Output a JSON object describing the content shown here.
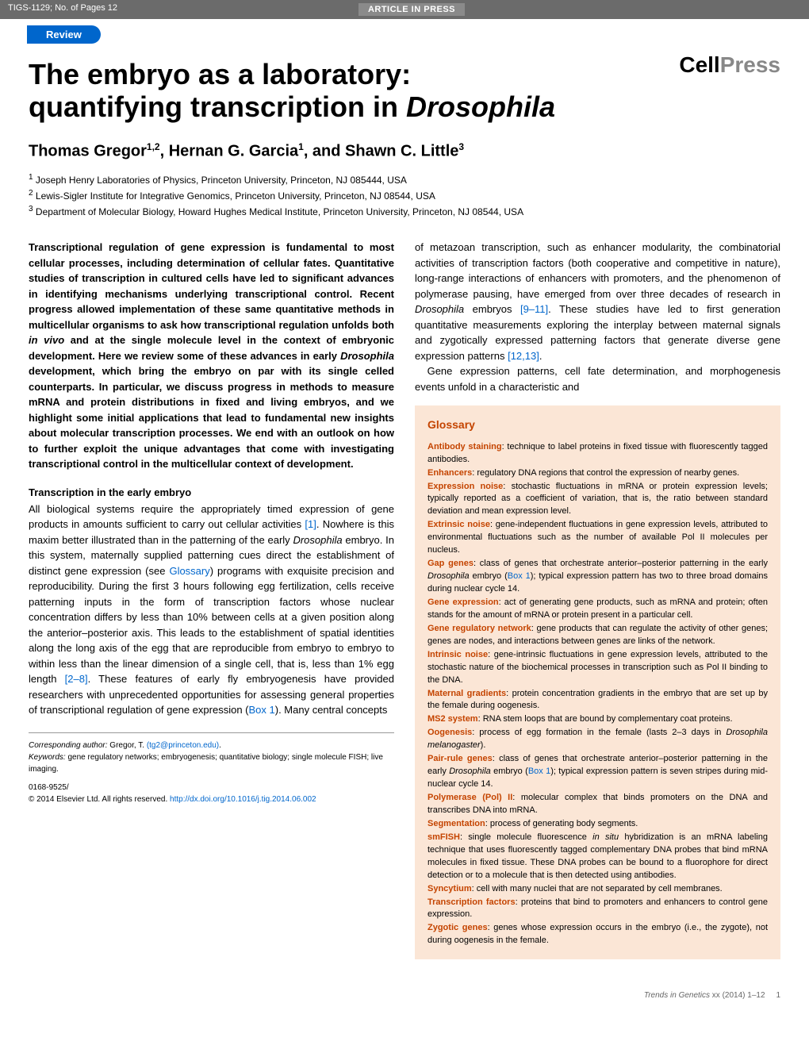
{
  "header": {
    "running_head": "TIGS-1129; No. of Pages 12",
    "banner": "ARTICLE IN PRESS",
    "review_badge": "Review",
    "publisher_logo_cell": "Cell",
    "publisher_logo_press": "Press"
  },
  "article": {
    "title_line1": "The embryo as a laboratory:",
    "title_line2_pre": "quantifying transcription in ",
    "title_line2_italic": "Drosophila",
    "authors_html": "Thomas Gregor",
    "author1_sup": "1,2",
    "author_sep1": ", Hernan G. Garcia",
    "author2_sup": "1",
    "author_sep2": ", and Shawn C. Little",
    "author3_sup": "3",
    "affiliations": [
      {
        "sup": "1",
        "text": " Joseph Henry Laboratories of Physics, Princeton University, Princeton, NJ 085444, USA"
      },
      {
        "sup": "2",
        "text": " Lewis-Sigler Institute for Integrative Genomics, Princeton University, Princeton, NJ 08544, USA"
      },
      {
        "sup": "3",
        "text": " Department of Molecular Biology, Howard Hughes Medical Institute, Princeton University, Princeton, NJ 08544, USA"
      }
    ]
  },
  "abstract": {
    "p1a": "Transcriptional regulation of gene expression is fundamental to most cellular processes, including determination of cellular fates. Quantitative studies of transcription in cultured cells have led to significant advances in identifying mechanisms underlying transcriptional control. Recent progress allowed implementation of these same quantitative methods in multicellular organisms to ask how transcriptional regulation unfolds both ",
    "p1_italic1": "in vivo",
    "p1b": " and at the single molecule level in the context of embryonic development. Here we review some of these advances in early ",
    "p1_italic2": "Drosophila",
    "p1c": " development, which bring the embryo on par with its single celled counterparts. In particular, we discuss progress in methods to measure mRNA and protein distributions in fixed and living embryos, and we highlight some initial applications that lead to fundamental new insights about molecular transcription processes. We end with an outlook on how to further exploit the unique advantages that come with investigating transcriptional control in the multicellular context of development."
  },
  "section1": {
    "heading": "Transcription in the early embryo",
    "p1a": "All biological systems require the appropriately timed expression of gene products in amounts sufficient to carry out cellular activities ",
    "p1_ref1": "[1]",
    "p1b": ". Nowhere is this maxim better illustrated than in the patterning of the early ",
    "p1_italic1": "Drosophila",
    "p1c": " embryo. In this system, maternally supplied patterning cues direct the establishment of distinct gene expression (see ",
    "p1_link1": "Glossary",
    "p1d": ") programs with exquisite precision and reproducibility. During the first 3 hours following egg fertilization, cells receive patterning inputs in the form of transcription factors whose nuclear concentration differs by less than 10% between cells at a given position along the anterior–posterior axis. This leads to the establishment of spatial identities along the long axis of the egg that are reproducible from embryo to embryo to within less than the linear dimension of a single cell, that is, less than 1% egg length ",
    "p1_ref2": "[2–8]",
    "p1e": ". These features of early fly embryogenesis have provided researchers with unprecedented opportunities for assessing general properties of transcriptional regulation of gene expression (",
    "p1_link2": "Box 1",
    "p1f": "). Many central concepts"
  },
  "col2": {
    "p1a": "of metazoan transcription, such as enhancer modularity, the combinatorial activities of transcription factors (both cooperative and competitive in nature), long-range interactions of enhancers with promoters, and the phenomenon of polymerase pausing, have emerged from over three decades of research in ",
    "p1_italic1": "Drosophila",
    "p1b": " embryos ",
    "p1_ref1": "[9–11]",
    "p1c": ". These studies have led to first generation quantitative measurements exploring the interplay between maternal signals and zygotically expressed patterning factors that generate diverse gene expression patterns ",
    "p1_ref2": "[12,13]",
    "p1d": ".",
    "p2": "Gene expression patterns, cell fate determination, and morphogenesis events unfold in a characteristic and"
  },
  "glossary": {
    "heading": "Glossary",
    "items": [
      {
        "term": "Antibody staining",
        "def": ": technique to label proteins in fixed tissue with fluorescently tagged antibodies."
      },
      {
        "term": "Enhancers",
        "def": ": regulatory DNA regions that control the expression of nearby genes."
      },
      {
        "term": "Expression noise",
        "def": ": stochastic fluctuations in mRNA or protein expression levels; typically reported as a coefficient of variation, that is, the ratio between standard deviation and mean expression level."
      },
      {
        "term": "Extrinsic noise",
        "def": ": gene-independent fluctuations in gene expression levels, attributed to environmental fluctuations such as the number of available Pol II molecules per nucleus."
      },
      {
        "term": "Gap genes",
        "def_pre": ": class of genes that orchestrate anterior–posterior patterning in the early ",
        "def_italic": "Drosophila",
        "def_mid": " embryo (",
        "def_link": "Box 1",
        "def_post": "); typical expression pattern has two to three broad domains during nuclear cycle 14."
      },
      {
        "term": "Gene expression",
        "def": ": act of generating gene products, such as mRNA and protein; often stands for the amount of mRNA or protein present in a particular cell."
      },
      {
        "term": "Gene regulatory network",
        "def": ": gene products that can regulate the activity of other genes; genes are nodes, and interactions between genes are links of the network."
      },
      {
        "term": "Intrinsic noise",
        "def": ": gene-intrinsic fluctuations in gene expression levels, attributed to the stochastic nature of the biochemical processes in transcription such as Pol II binding to the DNA."
      },
      {
        "term": "Maternal gradients",
        "def": ": protein concentration gradients in the embryo that are set up by the female during oogenesis."
      },
      {
        "term": "MS2 system",
        "def": ": RNA stem loops that are bound by complementary coat proteins."
      },
      {
        "term": "Oogenesis",
        "def_pre": ": process of egg formation in the female (lasts 2–3 days in ",
        "def_italic": "Drosophila melanogaster",
        "def_post": ")."
      },
      {
        "term": "Pair-rule genes",
        "def_pre": ": class of genes that orchestrate anterior–posterior patterning in the early ",
        "def_italic": "Drosophila",
        "def_mid": " embryo (",
        "def_link": "Box 1",
        "def_post": "); typical expression pattern is seven stripes during mid-nuclear cycle 14."
      },
      {
        "term": "Polymerase (Pol) II",
        "def": ": molecular complex that binds promoters on the DNA and transcribes DNA into mRNA."
      },
      {
        "term": "Segmentation",
        "def": ": process of generating body segments."
      },
      {
        "term": "smFISH",
        "def_pre": ": single molecule fluorescence ",
        "def_italic": "in situ",
        "def_post": " hybridization is an mRNA labeling technique that uses fluorescently tagged complementary DNA probes that bind mRNA molecules in fixed tissue. These DNA probes can be bound to a fluorophore for direct detection or to a molecule that is then detected using antibodies."
      },
      {
        "term": "Syncytium",
        "def": ": cell with many nuclei that are not separated by cell membranes."
      },
      {
        "term": "Transcription factors",
        "def": ": proteins that bind to promoters and enhancers to control gene expression."
      },
      {
        "term": "Zygotic genes",
        "def": ": genes whose expression occurs in the embryo (i.e., the zygote), not during oogenesis in the female."
      }
    ]
  },
  "footnotes": {
    "corresponding_label": "Corresponding author:",
    "corresponding_name": " Gregor, T. ",
    "corresponding_email": "(tg2@princeton.edu)",
    "corresponding_dot": ".",
    "keywords_label": "Keywords:",
    "keywords_text": " gene regulatory networks; embryogenesis; quantitative biology; single molecule FISH; live imaging.",
    "issn": "0168-9525/",
    "copyright": "© 2014 Elsevier Ltd. All rights reserved. ",
    "doi": "http://dx.doi.org/10.1016/j.tig.2014.06.002"
  },
  "footer": {
    "left": "",
    "right_italic": "Trends in Genetics",
    "right_rest": " xx (2014) 1–12",
    "page_num": "1"
  },
  "colors": {
    "header_bg": "#6b6b6b",
    "banner_bg": "#8a8a8a",
    "review_bg": "#0066cc",
    "link": "#0066cc",
    "glossary_bg": "#fbe6d6",
    "glossary_accent": "#c44400"
  }
}
